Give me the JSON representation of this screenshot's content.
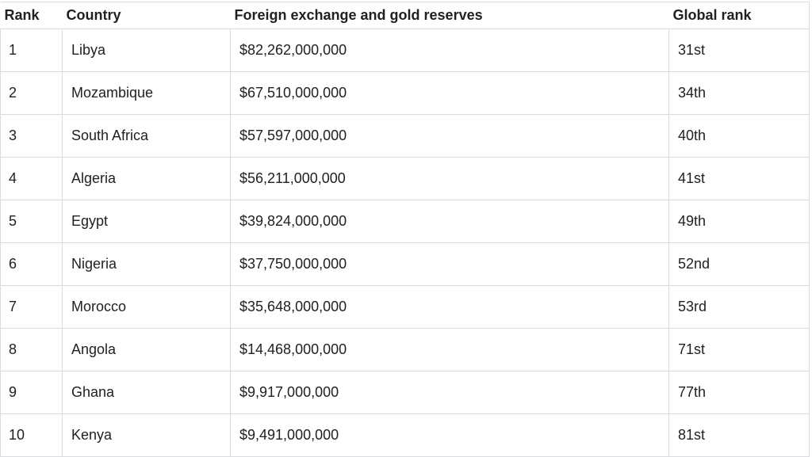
{
  "colors": {
    "background": "#ffffff",
    "border": "#dadce0",
    "text": "#202124",
    "header_text": "#202124"
  },
  "table": {
    "columns": [
      {
        "key": "rank",
        "label": "Rank"
      },
      {
        "key": "country",
        "label": "Country"
      },
      {
        "key": "reserves",
        "label": "Foreign exchange and gold reserves"
      },
      {
        "key": "global_rank",
        "label": "Global rank"
      }
    ],
    "rows": [
      {
        "rank": "1",
        "country": "Libya",
        "reserves": "$82,262,000,000",
        "global_rank": "31st"
      },
      {
        "rank": "2",
        "country": "Mozambique",
        "reserves": "$67,510,000,000",
        "global_rank": "34th"
      },
      {
        "rank": "3",
        "country": "South Africa",
        "reserves": "$57,597,000,000",
        "global_rank": "40th"
      },
      {
        "rank": "4",
        "country": "Algeria",
        "reserves": "$56,211,000,000",
        "global_rank": "41st"
      },
      {
        "rank": "5",
        "country": "Egypt",
        "reserves": "$39,824,000,000",
        "global_rank": "49th"
      },
      {
        "rank": "6",
        "country": "Nigeria",
        "reserves": "$37,750,000,000",
        "global_rank": "52nd"
      },
      {
        "rank": "7",
        "country": "Morocco",
        "reserves": "$35,648,000,000",
        "global_rank": "53rd"
      },
      {
        "rank": "8",
        "country": "Angola",
        "reserves": "$14,468,000,000",
        "global_rank": "71st"
      },
      {
        "rank": "9",
        "country": "Ghana",
        "reserves": "$9,917,000,000",
        "global_rank": "77th"
      },
      {
        "rank": "10",
        "country": "Kenya",
        "reserves": "$9,491,000,000",
        "global_rank": "81st"
      }
    ]
  }
}
